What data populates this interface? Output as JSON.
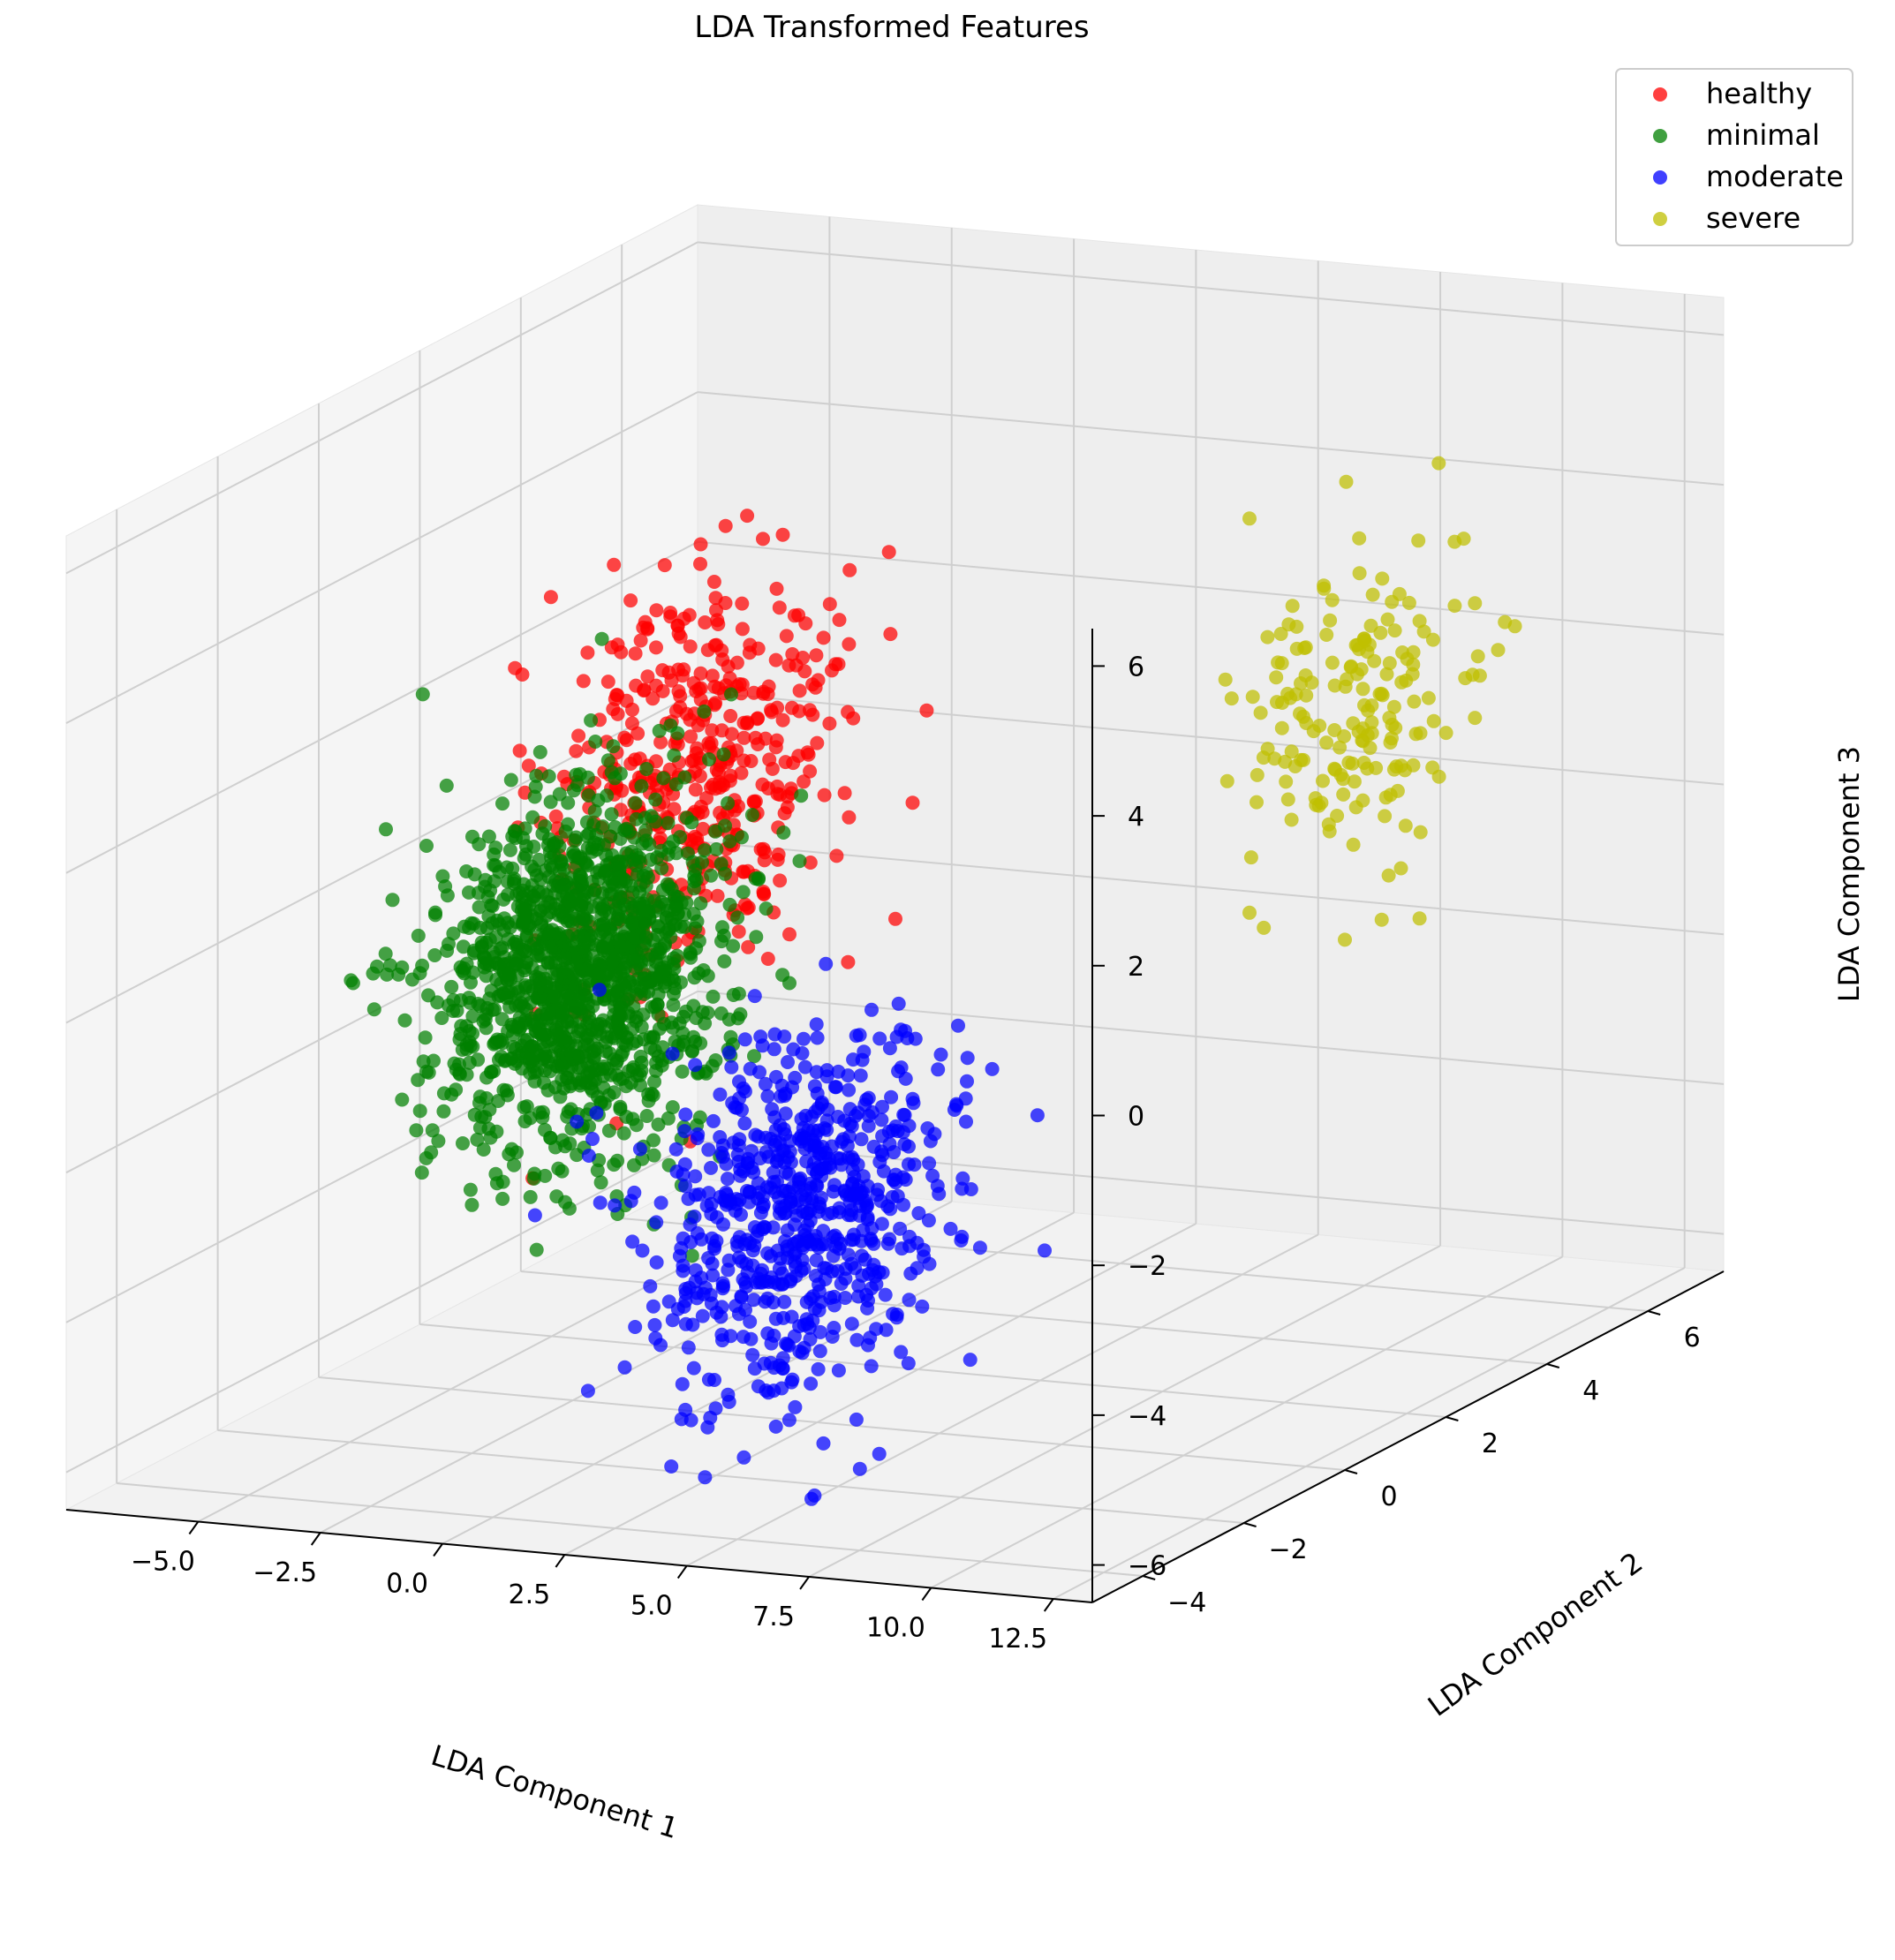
{
  "chart_data": {
    "type": "scatter",
    "projection": "3d",
    "title": "LDA Transformed Features",
    "xlabel": "LDA Component 1",
    "ylabel": "LDA Component 2",
    "zlabel": "LDA Component 3",
    "xlim": [
      -7.7,
      13.3
    ],
    "ylim": [
      -5.0,
      7.5
    ],
    "zlim": [
      -6.5,
      6.5
    ],
    "xticks": [
      "−5.0",
      "−2.5",
      "0.0",
      "2.5",
      "5.0",
      "7.5",
      "10.0",
      "12.5"
    ],
    "xtick_values": [
      -5.0,
      -2.5,
      0.0,
      2.5,
      5.0,
      7.5,
      10.0,
      12.5
    ],
    "yticks": [
      "−4",
      "−2",
      "0",
      "2",
      "4",
      "6"
    ],
    "ytick_values": [
      -4,
      -2,
      0,
      2,
      4,
      6
    ],
    "zticks": [
      "−6",
      "−4",
      "−2",
      "0",
      "2",
      "4",
      "6"
    ],
    "ztick_values": [
      -6,
      -4,
      -2,
      0,
      2,
      4,
      6
    ],
    "grid": true,
    "legend_position": "top-right",
    "series": [
      {
        "name": "healthy",
        "color": "#ff0000",
        "count": 450,
        "center": [
          0.5,
          0.0,
          2.8
        ],
        "spread": [
          1.1,
          1.0,
          1.2
        ]
      },
      {
        "name": "minimal",
        "color": "#008000",
        "count": 1400,
        "center": [
          0.0,
          0.0,
          0.0
        ],
        "spread": [
          1.1,
          1.0,
          1.1
        ]
      },
      {
        "name": "moderate",
        "color": "#0000ff",
        "count": 700,
        "center": [
          6.5,
          0.0,
          -1.5
        ],
        "spread": [
          1.1,
          1.0,
          1.1
        ]
      },
      {
        "name": "severe",
        "color": "#bfbf00",
        "count": 180,
        "center": [
          11.0,
          6.0,
          3.5
        ],
        "spread": [
          0.9,
          0.9,
          1.0
        ]
      }
    ]
  }
}
